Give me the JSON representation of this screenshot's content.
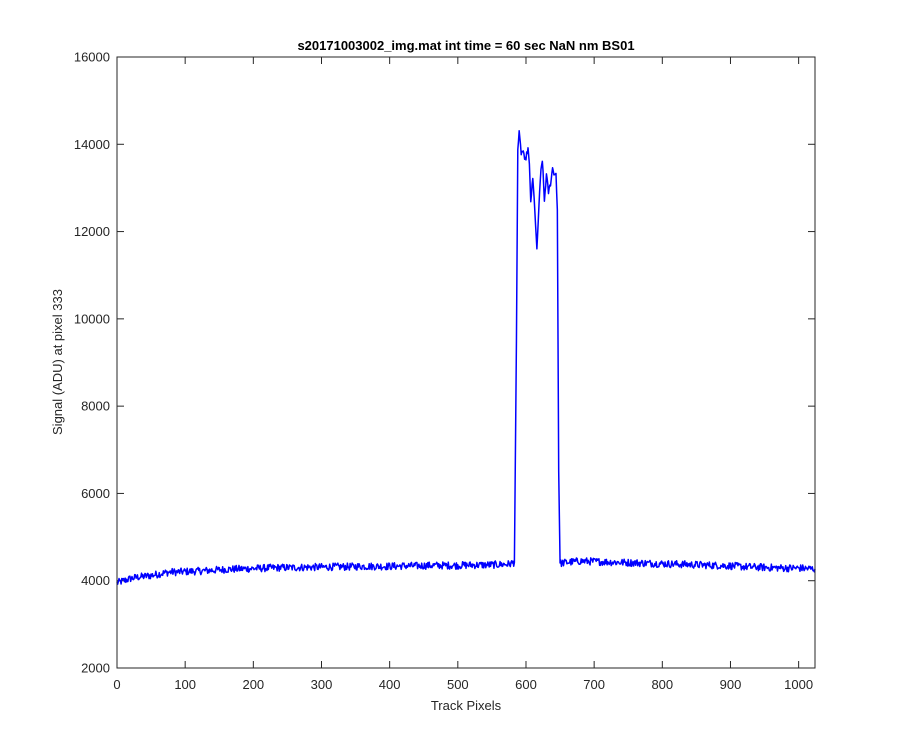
{
  "chart_data": {
    "type": "line",
    "title": "s20171003002_img.mat int time = 60 sec  NaN nm BS01",
    "xlabel": "Track Pixels",
    "ylabel": "Signal (ADU) at pixel 333",
    "xlim": [
      0,
      1024
    ],
    "ylim": [
      2000,
      16000
    ],
    "xticks": [
      "0",
      "100",
      "200",
      "300",
      "400",
      "500",
      "600",
      "700",
      "800",
      "900",
      "1000"
    ],
    "yticks": [
      "2000",
      "4000",
      "6000",
      "8000",
      "10000",
      "12000",
      "14000",
      "16000"
    ],
    "grid": false,
    "legend": "none",
    "series": [
      {
        "color": "#0000ff",
        "x": [
          0,
          10,
          20,
          30,
          40,
          50,
          60,
          70,
          80,
          90,
          100,
          120,
          140,
          160,
          180,
          200,
          220,
          240,
          260,
          280,
          300,
          320,
          340,
          360,
          380,
          400,
          420,
          440,
          460,
          480,
          500,
          520,
          540,
          560,
          575,
          583,
          586,
          588,
          590,
          593,
          596,
          598,
          600,
          603,
          605,
          607,
          610,
          613,
          616,
          619,
          622,
          624,
          627,
          630,
          633,
          636,
          639,
          642,
          644,
          646,
          648,
          650,
          660,
          680,
          700,
          720,
          740,
          760,
          780,
          800,
          820,
          840,
          860,
          880,
          900,
          920,
          940,
          960,
          980,
          1000,
          1010,
          1024
        ],
        "y": [
          3950,
          4000,
          4050,
          4080,
          4100,
          4120,
          4150,
          4180,
          4200,
          4200,
          4210,
          4220,
          4240,
          4260,
          4270,
          4280,
          4290,
          4300,
          4300,
          4310,
          4310,
          4320,
          4320,
          4330,
          4330,
          4330,
          4340,
          4340,
          4350,
          4350,
          4350,
          4360,
          4360,
          4370,
          4380,
          4420,
          9500,
          13900,
          14250,
          13800,
          13850,
          13600,
          13700,
          13900,
          13500,
          12700,
          13200,
          12500,
          11550,
          12600,
          13400,
          13650,
          12700,
          13300,
          12900,
          13100,
          13450,
          13300,
          13350,
          12500,
          6500,
          4400,
          4420,
          4450,
          4440,
          4430,
          4420,
          4410,
          4400,
          4390,
          4380,
          4370,
          4360,
          4350,
          4340,
          4320,
          4310,
          4300,
          4290,
          4290,
          4280,
          4270
        ]
      }
    ]
  }
}
